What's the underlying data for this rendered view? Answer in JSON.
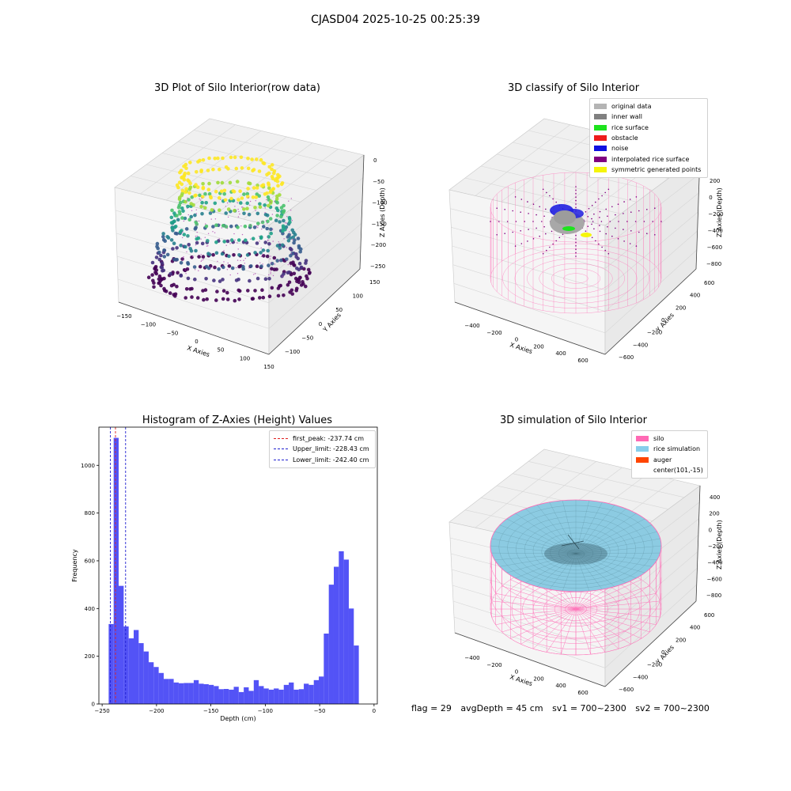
{
  "suptitle": "CJASD04 2025-10-25 00:25:39",
  "status": {
    "flag": "flag = 29",
    "avg_depth": "avgDepth = 45 cm",
    "sv1": "sv1 = 700~2300",
    "sv2": "sv2 = 700~2300"
  },
  "chart_data": [
    {
      "type": "scatter",
      "title": "3D Plot of Silo Interior(row data)",
      "xlabel": "X Axies",
      "ylabel": "Y Axies",
      "zlabel": "Z Axies (Depth)",
      "x_ticks": [
        "−150",
        "−100",
        "−50",
        "0",
        "50",
        "100",
        "150"
      ],
      "y_ticks": [
        "−100",
        "−50",
        "0",
        "50",
        "100",
        "150"
      ],
      "z_ticks": [
        "0",
        "−50",
        "−100",
        "−150",
        "−200",
        "−250"
      ],
      "xlim": [
        -160,
        160
      ],
      "ylim": [
        -130,
        160
      ],
      "zlim": [
        -260,
        0
      ],
      "colormap": "viridis"
    },
    {
      "type": "scatter",
      "title": "3D classify of Silo Interior",
      "xlabel": "X Axies",
      "ylabel": "Y Axies",
      "zlabel": "Z Axies (Depth)",
      "x_ticks": [
        "−400",
        "−200",
        "0",
        "200",
        "400",
        "600"
      ],
      "y_ticks": [
        "−600",
        "−400",
        "−200",
        "0",
        "200",
        "400",
        "600"
      ],
      "z_ticks": [
        "200",
        "0",
        "−200",
        "−400",
        "−600",
        "−800"
      ],
      "legend": [
        {
          "label": "original data",
          "color": "#b4b4b4"
        },
        {
          "label": "inner wall",
          "color": "#808080"
        },
        {
          "label": "rice surface",
          "color": "#1ee31e"
        },
        {
          "label": "obstacle",
          "color": "#ee1c1c"
        },
        {
          "label": "noise",
          "color": "#1010e0"
        },
        {
          "label": "interpolated rice surface",
          "color": "#800080"
        },
        {
          "label": "symmetric generated points",
          "color": "#f5f50a"
        }
      ]
    },
    {
      "type": "bar",
      "title": "Histogram of Z-Axies (Height) Values",
      "xlabel": "Depth (cm)",
      "ylabel": "Frequency",
      "xlim": [
        -253,
        3
      ],
      "ylim": [
        0,
        1160
      ],
      "x_ticks": [
        -250,
        -200,
        -150,
        -100,
        -50,
        0
      ],
      "y_ticks": [
        0,
        200,
        400,
        600,
        800,
        1000
      ],
      "bin_start": -244,
      "bin_width": 4.6,
      "values": [
        335,
        1115,
        495,
        325,
        275,
        310,
        255,
        220,
        175,
        155,
        130,
        105,
        105,
        90,
        87,
        88,
        88,
        100,
        85,
        83,
        80,
        75,
        62,
        63,
        60,
        72,
        50,
        70,
        55,
        100,
        75,
        65,
        60,
        65,
        60,
        80,
        90,
        60,
        62,
        85,
        80,
        100,
        115,
        295,
        500,
        575,
        640,
        605,
        400,
        245
      ],
      "bar_color": "#4a4af5",
      "lines": [
        {
          "label": "first_peak: -237.74 cm",
          "x": -237.74,
          "color": "#e02020"
        },
        {
          "label": "Upper_limit: -228.43 cm",
          "x": -228.43,
          "color": "#2020d0"
        },
        {
          "label": "Lower_limit: -242.40 cm",
          "x": -242.4,
          "color": "#2020d0"
        }
      ]
    },
    {
      "type": "surface",
      "title": "3D simulation of Silo Interior",
      "xlabel": "X Axies",
      "ylabel": "Y Axies",
      "zlabel": "Z Axies (Depth)",
      "x_ticks": [
        "−400",
        "−200",
        "0",
        "200",
        "400",
        "600"
      ],
      "y_ticks": [
        "−600",
        "−400",
        "−200",
        "0",
        "200",
        "400",
        "600"
      ],
      "z_ticks": [
        "400",
        "200",
        "0",
        "−200",
        "−400",
        "−600",
        "−800"
      ],
      "legend": [
        {
          "label": "silo",
          "color": "#ff69b4"
        },
        {
          "label": "rice simulation",
          "color": "#87ceeb"
        },
        {
          "label": "auger",
          "color": "#ff4500"
        },
        {
          "label": "center(101,-15)",
          "color": ""
        }
      ]
    }
  ]
}
